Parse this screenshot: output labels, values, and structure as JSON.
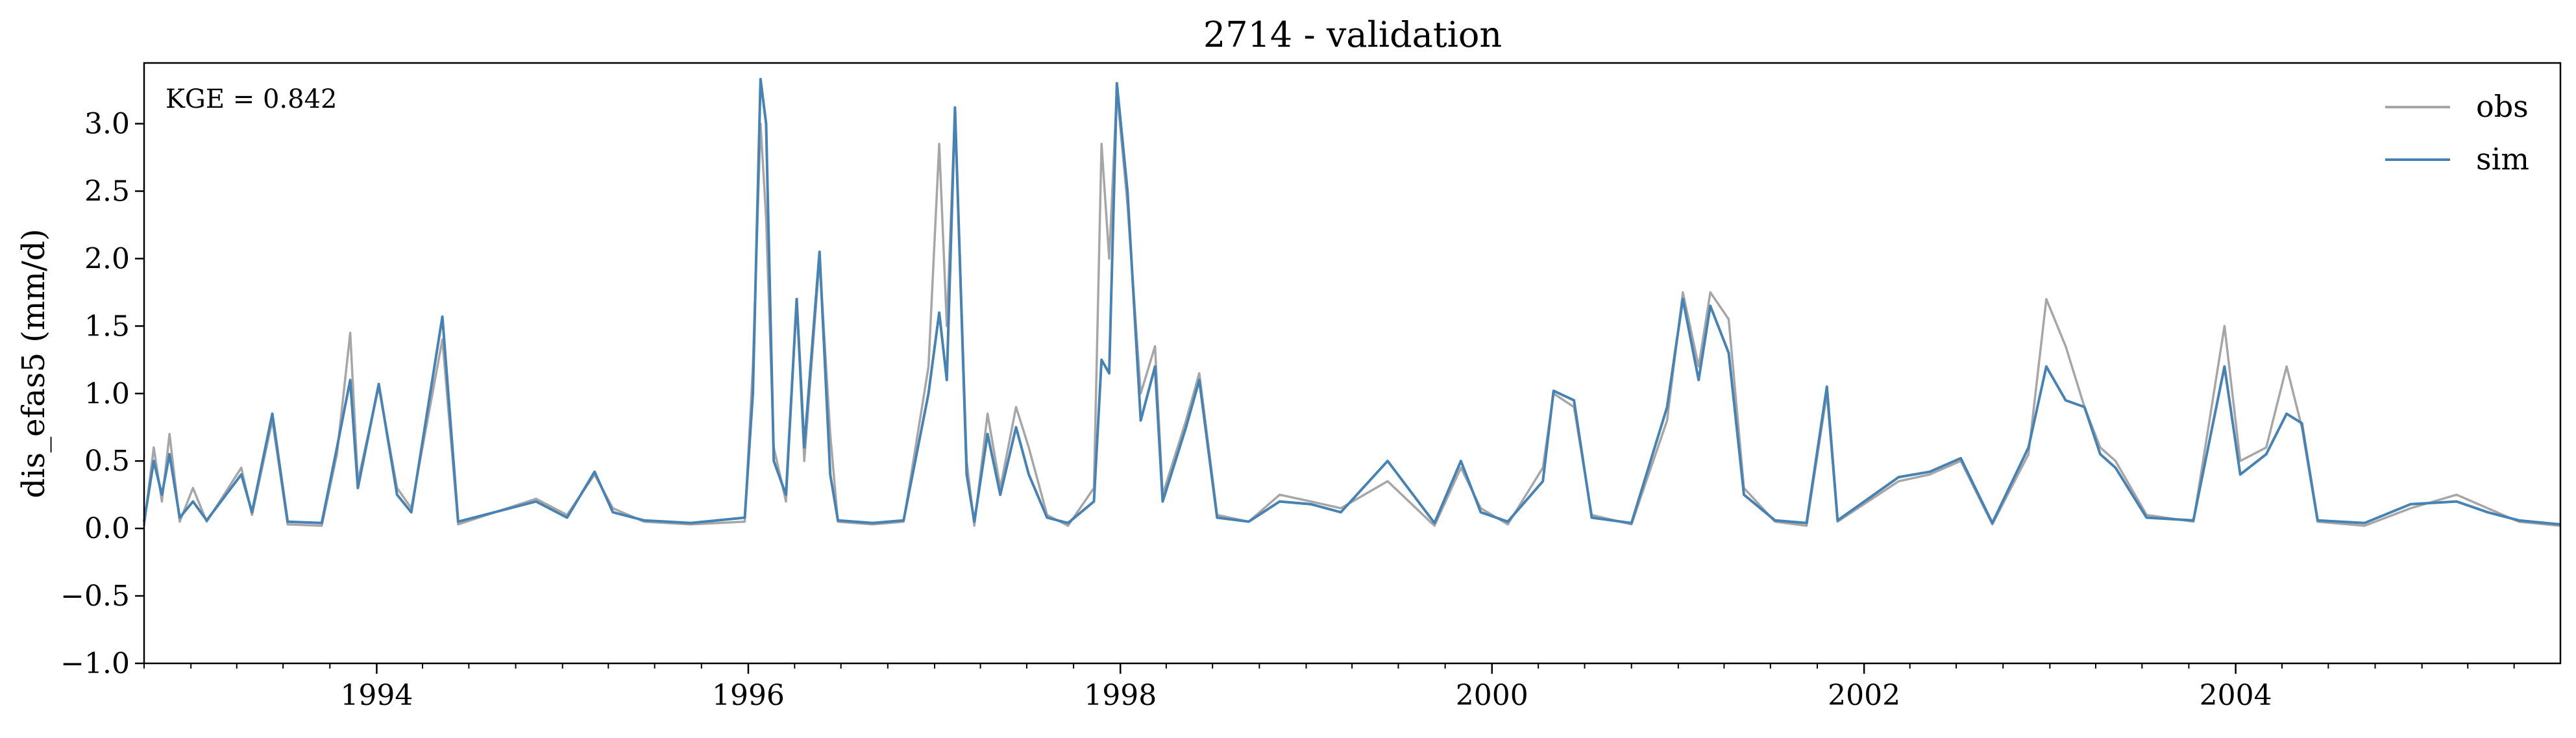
{
  "chart_data": {
    "type": "line",
    "title": "2714 - validation",
    "ylabel": "dis_efas5 (mm/d)",
    "xlabel": "",
    "annotation": "KGE = 0.842",
    "xlim": [
      "1992-10-01",
      "2005-09-30"
    ],
    "ylim": [
      -1.0,
      3.45
    ],
    "yticks": [
      -1.0,
      -0.5,
      0.0,
      0.5,
      1.0,
      1.5,
      2.0,
      2.5,
      3.0
    ],
    "ytick_labels": [
      "−1.0",
      "−0.5",
      "0.0",
      "0.5",
      "1.0",
      "1.5",
      "2.0",
      "2.5",
      "3.0"
    ],
    "xticks": [
      "1994-01-01",
      "1996-01-01",
      "1998-01-01",
      "2000-01-01",
      "2002-01-01",
      "2004-01-01"
    ],
    "xtick_labels": [
      "1994",
      "1996",
      "1998",
      "2000",
      "2002",
      "2004"
    ],
    "legend_position": "top-right",
    "grid": false,
    "series": [
      {
        "name": "obs",
        "color": "#a6a6a6",
        "points": [
          [
            "1992-10-01",
            0.02
          ],
          [
            "1992-10-20",
            0.6
          ],
          [
            "1992-11-05",
            0.2
          ],
          [
            "1992-11-20",
            0.7
          ],
          [
            "1992-12-10",
            0.05
          ],
          [
            "1993-01-05",
            0.3
          ],
          [
            "1993-02-01",
            0.05
          ],
          [
            "1993-04-10",
            0.45
          ],
          [
            "1993-05-01",
            0.1
          ],
          [
            "1993-06-10",
            0.8
          ],
          [
            "1993-07-10",
            0.03
          ],
          [
            "1993-09-15",
            0.02
          ],
          [
            "1993-10-15",
            0.55
          ],
          [
            "1993-11-10",
            1.45
          ],
          [
            "1993-11-25",
            0.35
          ],
          [
            "1994-01-05",
            1.05
          ],
          [
            "1994-02-10",
            0.3
          ],
          [
            "1994-03-10",
            0.15
          ],
          [
            "1994-05-10",
            1.4
          ],
          [
            "1994-06-10",
            0.03
          ],
          [
            "1994-11-10",
            0.22
          ],
          [
            "1995-01-10",
            0.1
          ],
          [
            "1995-03-05",
            0.4
          ],
          [
            "1995-04-10",
            0.15
          ],
          [
            "1995-06-10",
            0.05
          ],
          [
            "1995-09-10",
            0.03
          ],
          [
            "1995-12-25",
            0.05
          ],
          [
            "1996-01-10",
            1.2
          ],
          [
            "1996-01-25",
            3.0
          ],
          [
            "1996-02-05",
            2.3
          ],
          [
            "1996-02-20",
            0.6
          ],
          [
            "1996-03-15",
            0.2
          ],
          [
            "1996-04-05",
            1.7
          ],
          [
            "1996-04-20",
            0.5
          ],
          [
            "1996-05-20",
            2.0
          ],
          [
            "1996-06-10",
            0.7
          ],
          [
            "1996-06-25",
            0.05
          ],
          [
            "1996-09-01",
            0.03
          ],
          [
            "1996-11-01",
            0.05
          ],
          [
            "1996-12-20",
            1.2
          ],
          [
            "1997-01-10",
            2.85
          ],
          [
            "1997-01-25",
            1.5
          ],
          [
            "1997-02-10",
            3.1
          ],
          [
            "1997-03-05",
            0.5
          ],
          [
            "1997-03-20",
            0.02
          ],
          [
            "1997-04-15",
            0.85
          ],
          [
            "1997-05-10",
            0.3
          ],
          [
            "1997-06-10",
            0.9
          ],
          [
            "1997-07-05",
            0.6
          ],
          [
            "1997-08-10",
            0.1
          ],
          [
            "1997-09-20",
            0.02
          ],
          [
            "1997-11-10",
            0.3
          ],
          [
            "1997-11-25",
            2.85
          ],
          [
            "1997-12-10",
            2.0
          ],
          [
            "1997-12-25",
            3.25
          ],
          [
            "1998-01-15",
            2.4
          ],
          [
            "1998-02-10",
            1.0
          ],
          [
            "1998-03-10",
            1.35
          ],
          [
            "1998-03-25",
            0.25
          ],
          [
            "1998-05-10",
            0.8
          ],
          [
            "1998-06-05",
            1.15
          ],
          [
            "1998-07-10",
            0.1
          ],
          [
            "1998-09-10",
            0.05
          ],
          [
            "1998-11-10",
            0.25
          ],
          [
            "1999-01-10",
            0.2
          ],
          [
            "1999-03-10",
            0.15
          ],
          [
            "1999-06-10",
            0.35
          ],
          [
            "1999-09-10",
            0.02
          ],
          [
            "1999-11-01",
            0.45
          ],
          [
            "1999-12-10",
            0.15
          ],
          [
            "2000-02-01",
            0.03
          ],
          [
            "2000-04-10",
            0.45
          ],
          [
            "2000-05-01",
            1.0
          ],
          [
            "2000-06-10",
            0.9
          ],
          [
            "2000-07-15",
            0.1
          ],
          [
            "2000-10-01",
            0.03
          ],
          [
            "2000-12-10",
            0.8
          ],
          [
            "2001-01-10",
            1.75
          ],
          [
            "2001-02-10",
            1.2
          ],
          [
            "2001-03-05",
            1.75
          ],
          [
            "2001-04-10",
            1.55
          ],
          [
            "2001-05-10",
            0.3
          ],
          [
            "2001-07-10",
            0.05
          ],
          [
            "2001-09-10",
            0.02
          ],
          [
            "2001-10-20",
            1.0
          ],
          [
            "2001-11-10",
            0.05
          ],
          [
            "2002-03-10",
            0.35
          ],
          [
            "2002-05-10",
            0.4
          ],
          [
            "2002-07-10",
            0.5
          ],
          [
            "2002-09-10",
            0.03
          ],
          [
            "2002-11-20",
            0.55
          ],
          [
            "2002-12-25",
            1.7
          ],
          [
            "2003-02-01",
            1.35
          ],
          [
            "2003-03-10",
            0.9
          ],
          [
            "2003-04-10",
            0.6
          ],
          [
            "2003-05-10",
            0.5
          ],
          [
            "2003-07-10",
            0.1
          ],
          [
            "2003-10-10",
            0.05
          ],
          [
            "2003-12-10",
            1.5
          ],
          [
            "2004-01-10",
            0.5
          ],
          [
            "2004-03-01",
            0.6
          ],
          [
            "2004-04-10",
            1.2
          ],
          [
            "2004-05-10",
            0.75
          ],
          [
            "2004-06-10",
            0.05
          ],
          [
            "2004-09-10",
            0.02
          ],
          [
            "2004-12-10",
            0.15
          ],
          [
            "2005-03-10",
            0.25
          ],
          [
            "2005-05-10",
            0.15
          ],
          [
            "2005-07-10",
            0.05
          ],
          [
            "2005-09-30",
            0.02
          ]
        ]
      },
      {
        "name": "sim",
        "color": "#4682b4",
        "points": [
          [
            "1992-10-01",
            0.05
          ],
          [
            "1992-10-20",
            0.5
          ],
          [
            "1992-11-05",
            0.25
          ],
          [
            "1992-11-20",
            0.55
          ],
          [
            "1992-12-10",
            0.08
          ],
          [
            "1993-01-05",
            0.2
          ],
          [
            "1993-02-01",
            0.06
          ],
          [
            "1993-04-10",
            0.4
          ],
          [
            "1993-05-01",
            0.12
          ],
          [
            "1993-06-10",
            0.85
          ],
          [
            "1993-07-10",
            0.05
          ],
          [
            "1993-09-15",
            0.04
          ],
          [
            "1993-10-15",
            0.6
          ],
          [
            "1993-11-10",
            1.1
          ],
          [
            "1993-11-25",
            0.3
          ],
          [
            "1994-01-05",
            1.07
          ],
          [
            "1994-02-10",
            0.25
          ],
          [
            "1994-03-10",
            0.12
          ],
          [
            "1994-05-10",
            1.57
          ],
          [
            "1994-06-10",
            0.05
          ],
          [
            "1994-11-10",
            0.2
          ],
          [
            "1995-01-10",
            0.08
          ],
          [
            "1995-03-05",
            0.42
          ],
          [
            "1995-04-10",
            0.12
          ],
          [
            "1995-06-10",
            0.06
          ],
          [
            "1995-09-10",
            0.04
          ],
          [
            "1995-12-25",
            0.08
          ],
          [
            "1996-01-10",
            1.0
          ],
          [
            "1996-01-25",
            3.33
          ],
          [
            "1996-02-05",
            3.0
          ],
          [
            "1996-02-20",
            0.5
          ],
          [
            "1996-03-15",
            0.25
          ],
          [
            "1996-04-05",
            1.7
          ],
          [
            "1996-04-20",
            0.6
          ],
          [
            "1996-05-20",
            2.05
          ],
          [
            "1996-06-10",
            0.4
          ],
          [
            "1996-06-25",
            0.06
          ],
          [
            "1996-09-01",
            0.04
          ],
          [
            "1996-11-01",
            0.06
          ],
          [
            "1996-12-20",
            1.0
          ],
          [
            "1997-01-10",
            1.6
          ],
          [
            "1997-01-25",
            1.1
          ],
          [
            "1997-02-10",
            3.12
          ],
          [
            "1997-03-05",
            0.4
          ],
          [
            "1997-03-20",
            0.05
          ],
          [
            "1997-04-15",
            0.7
          ],
          [
            "1997-05-10",
            0.25
          ],
          [
            "1997-06-10",
            0.75
          ],
          [
            "1997-07-05",
            0.4
          ],
          [
            "1997-08-10",
            0.08
          ],
          [
            "1997-09-20",
            0.04
          ],
          [
            "1997-11-10",
            0.2
          ],
          [
            "1997-11-25",
            1.25
          ],
          [
            "1997-12-10",
            1.15
          ],
          [
            "1997-12-25",
            3.3
          ],
          [
            "1998-01-15",
            2.5
          ],
          [
            "1998-02-10",
            0.8
          ],
          [
            "1998-03-10",
            1.2
          ],
          [
            "1998-03-25",
            0.2
          ],
          [
            "1998-05-10",
            0.75
          ],
          [
            "1998-06-05",
            1.1
          ],
          [
            "1998-07-10",
            0.08
          ],
          [
            "1998-09-10",
            0.05
          ],
          [
            "1998-11-10",
            0.2
          ],
          [
            "1999-01-10",
            0.18
          ],
          [
            "1999-03-10",
            0.12
          ],
          [
            "1999-06-10",
            0.5
          ],
          [
            "1999-09-10",
            0.04
          ],
          [
            "1999-11-01",
            0.5
          ],
          [
            "1999-12-10",
            0.12
          ],
          [
            "2000-02-01",
            0.05
          ],
          [
            "2000-04-10",
            0.35
          ],
          [
            "2000-05-01",
            1.02
          ],
          [
            "2000-06-10",
            0.95
          ],
          [
            "2000-07-15",
            0.08
          ],
          [
            "2000-10-01",
            0.04
          ],
          [
            "2000-12-10",
            0.9
          ],
          [
            "2001-01-10",
            1.7
          ],
          [
            "2001-02-10",
            1.1
          ],
          [
            "2001-03-05",
            1.65
          ],
          [
            "2001-04-10",
            1.3
          ],
          [
            "2001-05-10",
            0.25
          ],
          [
            "2001-07-10",
            0.06
          ],
          [
            "2001-09-10",
            0.04
          ],
          [
            "2001-10-20",
            1.05
          ],
          [
            "2001-11-10",
            0.06
          ],
          [
            "2002-03-10",
            0.38
          ],
          [
            "2002-05-10",
            0.42
          ],
          [
            "2002-07-10",
            0.52
          ],
          [
            "2002-09-10",
            0.04
          ],
          [
            "2002-11-20",
            0.6
          ],
          [
            "2002-12-25",
            1.2
          ],
          [
            "2003-02-01",
            0.95
          ],
          [
            "2003-03-10",
            0.9
          ],
          [
            "2003-04-10",
            0.55
          ],
          [
            "2003-05-10",
            0.45
          ],
          [
            "2003-07-10",
            0.08
          ],
          [
            "2003-10-10",
            0.06
          ],
          [
            "2003-12-10",
            1.2
          ],
          [
            "2004-01-10",
            0.4
          ],
          [
            "2004-03-01",
            0.55
          ],
          [
            "2004-04-10",
            0.85
          ],
          [
            "2004-05-10",
            0.78
          ],
          [
            "2004-06-10",
            0.06
          ],
          [
            "2004-09-10",
            0.04
          ],
          [
            "2004-12-10",
            0.18
          ],
          [
            "2005-03-10",
            0.2
          ],
          [
            "2005-05-10",
            0.12
          ],
          [
            "2005-07-10",
            0.06
          ],
          [
            "2005-09-30",
            0.03
          ]
        ]
      }
    ]
  }
}
